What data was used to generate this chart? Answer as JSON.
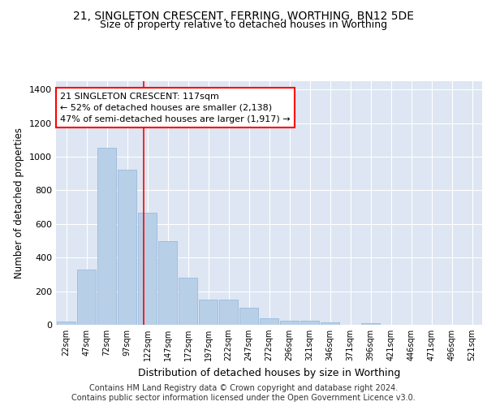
{
  "title": "21, SINGLETON CRESCENT, FERRING, WORTHING, BN12 5DE",
  "subtitle": "Size of property relative to detached houses in Worthing",
  "xlabel": "Distribution of detached houses by size in Worthing",
  "ylabel": "Number of detached properties",
  "categories": [
    "22sqm",
    "47sqm",
    "72sqm",
    "97sqm",
    "122sqm",
    "147sqm",
    "172sqm",
    "197sqm",
    "222sqm",
    "247sqm",
    "272sqm",
    "296sqm",
    "321sqm",
    "346sqm",
    "371sqm",
    "396sqm",
    "421sqm",
    "446sqm",
    "471sqm",
    "496sqm",
    "521sqm"
  ],
  "values": [
    18,
    328,
    1055,
    921,
    665,
    500,
    280,
    152,
    152,
    100,
    38,
    22,
    22,
    15,
    0,
    12,
    0,
    0,
    0,
    0,
    0
  ],
  "bar_color": "#b8cfe8",
  "bar_edgecolor": "#90b4d8",
  "bg_color": "#dde6f2",
  "grid_color": "#ffffff",
  "annotation_text": "21 SINGLETON CRESCENT: 117sqm\n← 52% of detached houses are smaller (2,138)\n47% of semi-detached houses are larger (1,917) →",
  "footnote": "Contains HM Land Registry data © Crown copyright and database right 2024.\nContains public sector information licensed under the Open Government Licence v3.0.",
  "ylim": [
    0,
    1450
  ],
  "yticks": [
    0,
    200,
    400,
    600,
    800,
    1000,
    1200,
    1400
  ],
  "title_fontsize": 10,
  "subtitle_fontsize": 9,
  "xlabel_fontsize": 9,
  "ylabel_fontsize": 8.5,
  "annotation_fontsize": 8,
  "footnote_fontsize": 7,
  "red_line_x": 3.8
}
